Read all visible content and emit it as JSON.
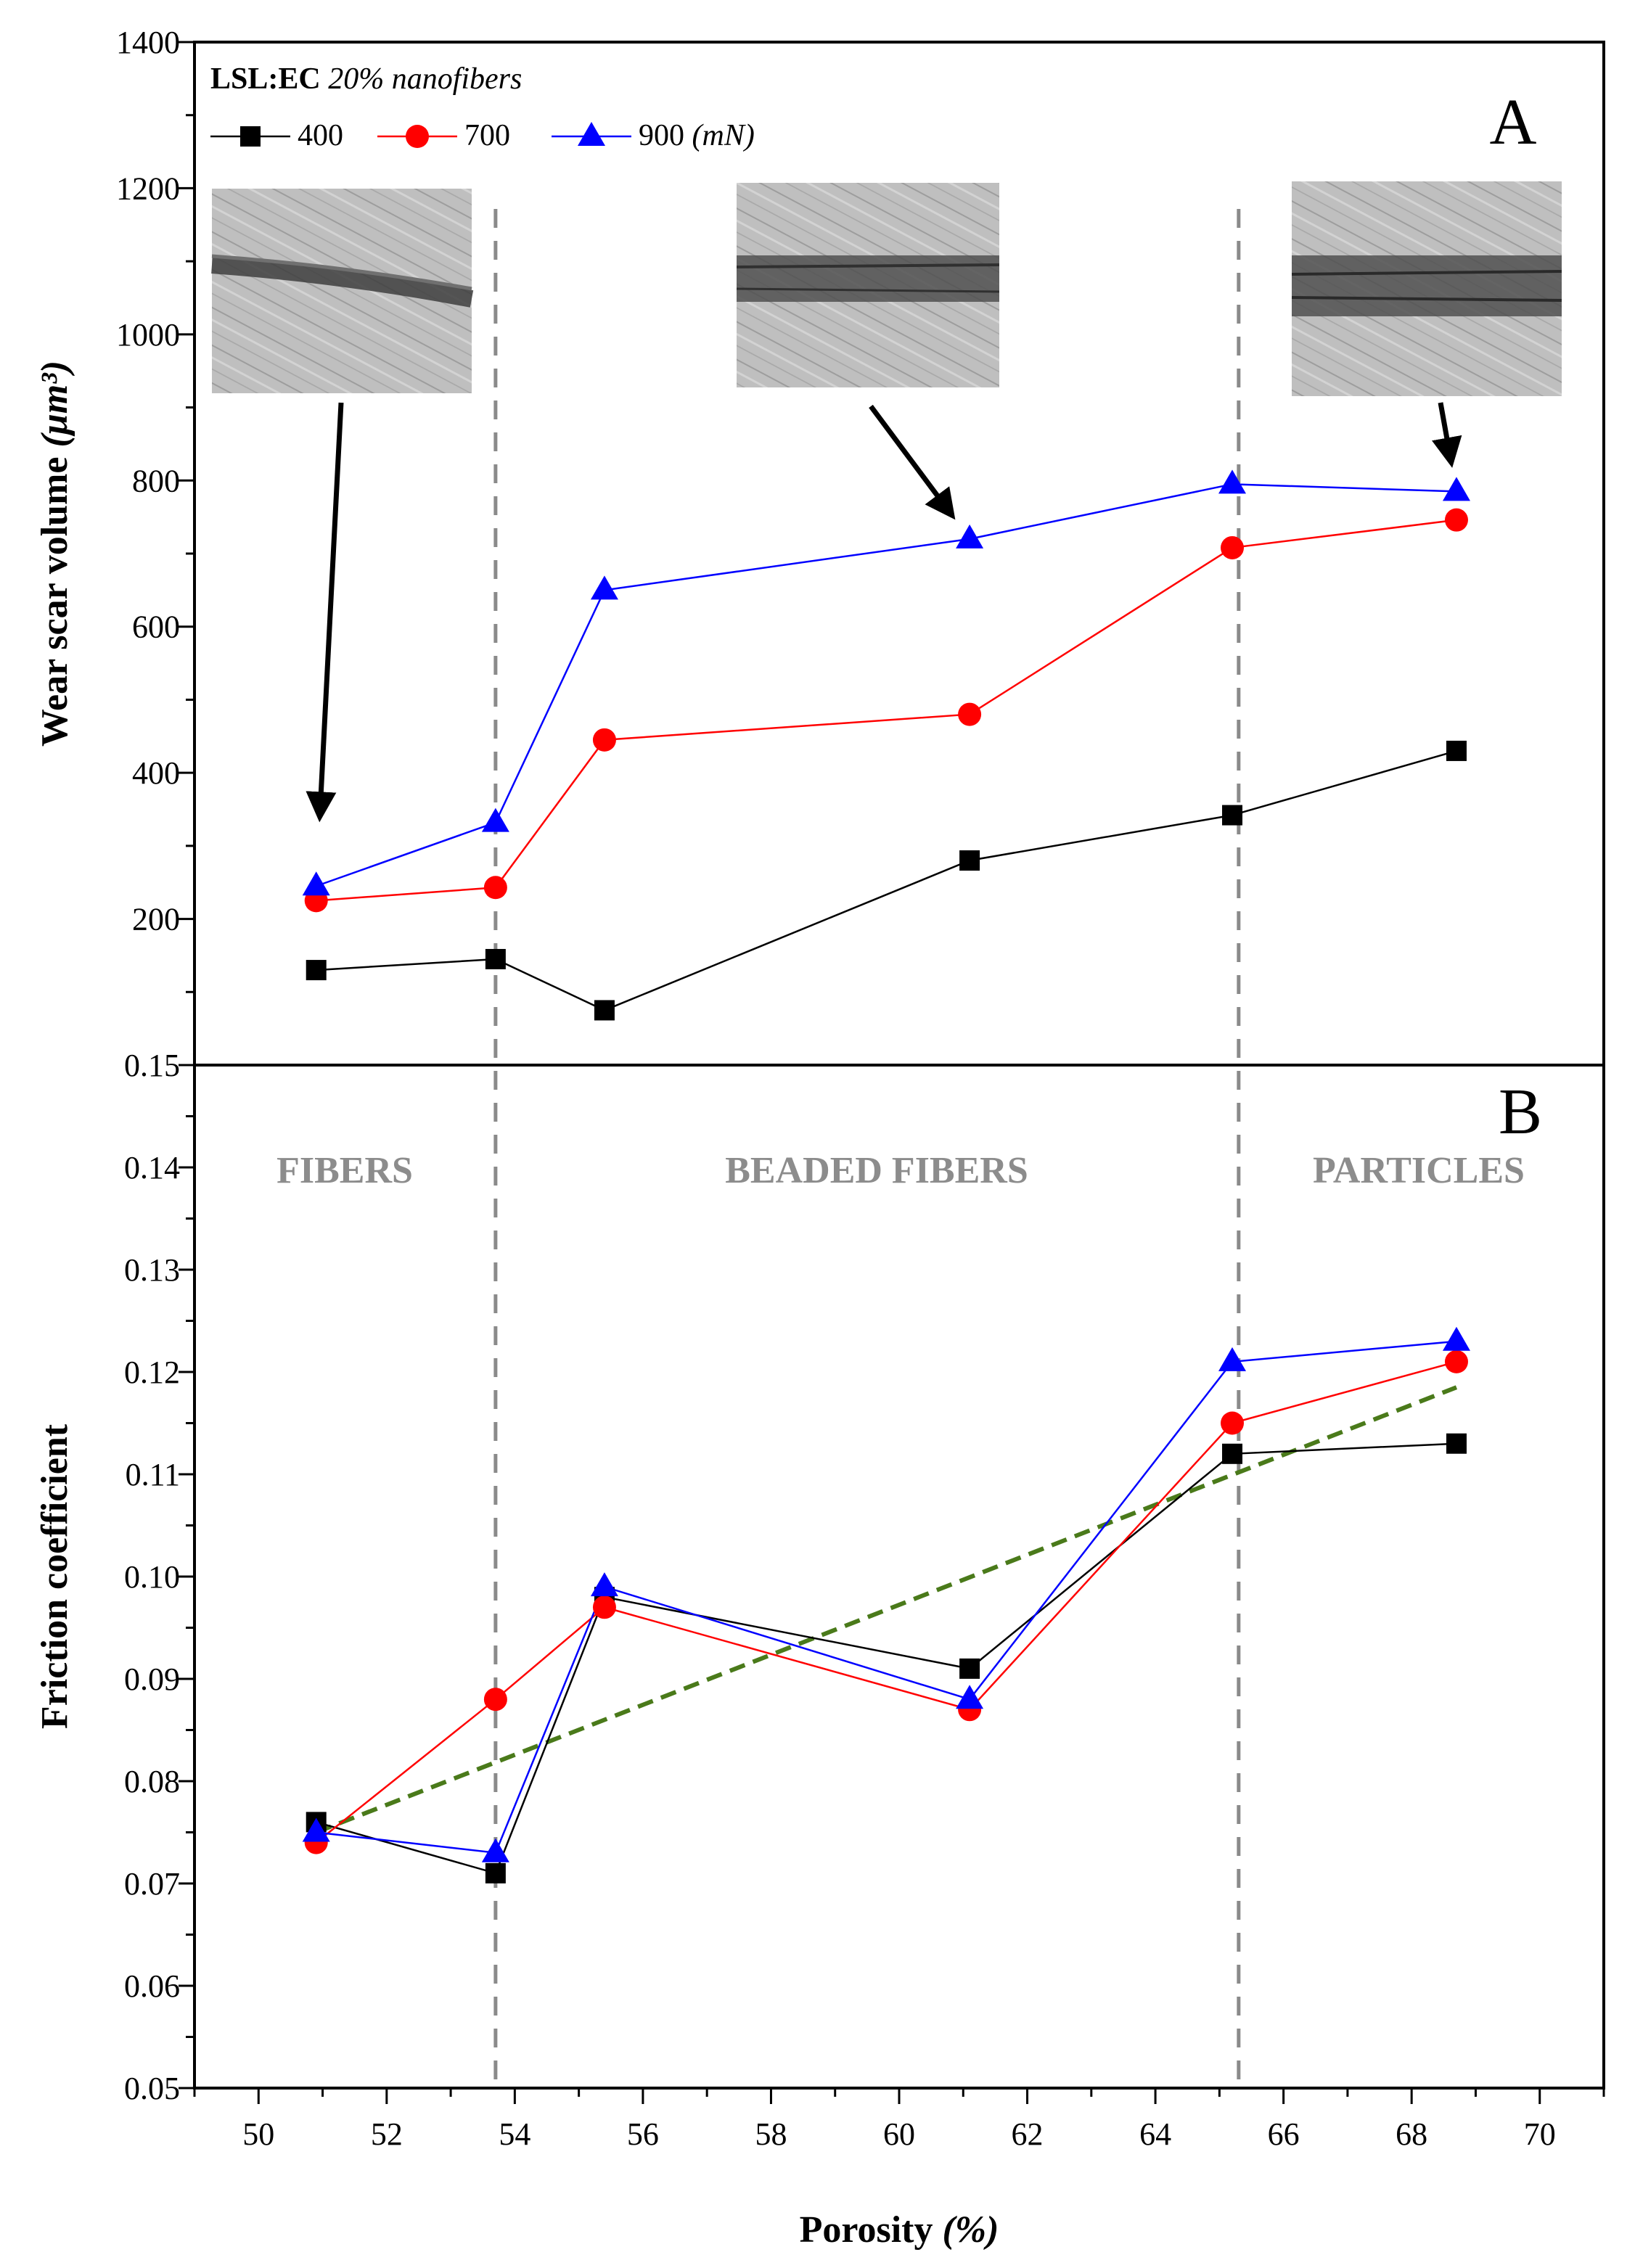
{
  "chart_data": [
    {
      "panel": "A",
      "type": "line",
      "panel_label": "A",
      "ylabel": "Wear scar volume",
      "ylabel_unit": "(μm³)",
      "x_range": [
        49,
        71
      ],
      "ylim": [
        0,
        1400
      ],
      "yticks": [
        "200",
        "400",
        "600",
        "800",
        "1000",
        "1200",
        "1400"
      ],
      "legend": {
        "title_bold": "LSL:EC",
        "title_italic": "20% nanofibers",
        "unit": "(mN)"
      },
      "x": [
        50.9,
        53.7,
        55.4,
        61.1,
        65.2,
        68.7
      ],
      "series": [
        {
          "name": "400",
          "color": "#000000",
          "marker": "square",
          "values": [
            130,
            145,
            75,
            280,
            342,
            430
          ]
        },
        {
          "name": "700",
          "color": "#ff0000",
          "marker": "circle",
          "values": [
            225,
            243,
            445,
            480,
            708,
            746
          ]
        },
        {
          "name": "900",
          "color": "#0000ff",
          "marker": "triangle",
          "values": [
            245,
            332,
            650,
            720,
            795,
            785
          ]
        }
      ],
      "annotations": [
        {
          "type": "micrograph",
          "points_to": {
            "x": 50.9,
            "y": 245
          }
        },
        {
          "type": "micrograph",
          "points_to": {
            "x": 61.1,
            "y": 720
          }
        },
        {
          "type": "micrograph",
          "points_to": {
            "x": 68.7,
            "y": 785
          }
        }
      ]
    },
    {
      "panel": "B",
      "type": "line",
      "panel_label": "B",
      "ylabel": "Friction coefficient",
      "xlabel": "Porosity",
      "xlabel_unit": "(%)",
      "xlim": [
        49,
        71
      ],
      "ylim": [
        0.05,
        0.15
      ],
      "xticks": [
        "50",
        "52",
        "54",
        "56",
        "58",
        "60",
        "62",
        "64",
        "66",
        "68",
        "70"
      ],
      "yticks": [
        "0.05",
        "0.06",
        "0.07",
        "0.08",
        "0.09",
        "0.10",
        "0.11",
        "0.12",
        "0.13",
        "0.14",
        "0.15"
      ],
      "x": [
        50.9,
        53.7,
        55.4,
        61.1,
        65.2,
        68.7
      ],
      "series": [
        {
          "name": "400",
          "color": "#000000",
          "marker": "square",
          "values": [
            0.076,
            0.071,
            0.098,
            0.091,
            0.112,
            0.113
          ]
        },
        {
          "name": "700",
          "color": "#ff0000",
          "marker": "circle",
          "values": [
            0.074,
            0.088,
            0.097,
            0.087,
            0.115,
            0.121
          ]
        },
        {
          "name": "900",
          "color": "#0000ff",
          "marker": "triangle",
          "values": [
            0.075,
            0.073,
            0.099,
            0.088,
            0.121,
            0.123
          ]
        }
      ],
      "trend_line": {
        "color": "#4a7a1a",
        "from": {
          "x": 50.9,
          "y": 0.075
        },
        "to": {
          "x": 68.7,
          "y": 0.1185
        }
      },
      "regions": [
        {
          "label": "FIBERS",
          "center_x": 53.5
        },
        {
          "label": "BEADED FIBERS",
          "center_x": 59.8
        },
        {
          "label": "PARTICLES",
          "center_x": 68.9
        }
      ],
      "region_boundaries_x": [
        53.7,
        65.3
      ]
    }
  ]
}
